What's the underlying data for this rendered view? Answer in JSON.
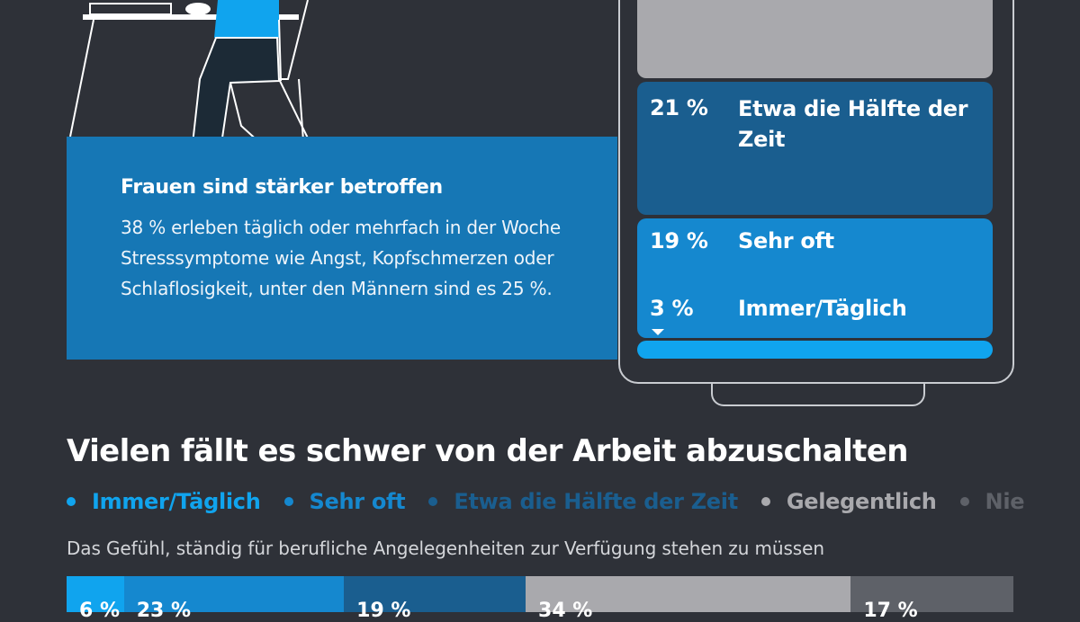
{
  "info": {
    "title": "Frauen sind stärker betroffen",
    "text": "38 % erleben täglich oder mehrfach in der Woche Stresssymptome wie Angst, Kopfschmerzen oder Schlaflosigkeit, unter den Männern sind es 25 %."
  },
  "phone": {
    "segments": [
      {
        "pct": "21 %",
        "label": "Etwa die Hälfte der Zeit"
      },
      {
        "pct": "19 %",
        "label": "Sehr oft"
      },
      {
        "pct": "3 %",
        "label": "Immer/Täglich"
      }
    ]
  },
  "section": {
    "heading": "Vielen fällt es schwer von der Arbeit abzuschalten"
  },
  "legend": [
    {
      "label": "Immer/Täglich",
      "color": "#10a4ee"
    },
    {
      "label": "Sehr oft",
      "color": "#1588cf"
    },
    {
      "label": "Etwa die Hälfte der Zeit",
      "color": "#1a5e8f"
    },
    {
      "label": "Gelegentlich",
      "color": "#a9a9ad"
    },
    {
      "label": "Nie",
      "color": "#5e6168"
    }
  ],
  "bar": {
    "question": "Das Gefühl, ständig für berufliche Angelegenheiten zur Verfügung stehen zu müssen",
    "segments": [
      {
        "category": "Immer/Täglich",
        "value": 6,
        "label": "6 %",
        "color": "#10a4ee"
      },
      {
        "category": "Sehr oft",
        "value": 23,
        "label": "23 %",
        "color": "#1588cf"
      },
      {
        "category": "Etwa die Hälfte der Zeit",
        "value": 19,
        "label": "19 %",
        "color": "#1a5e8f"
      },
      {
        "category": "Gelegentlich",
        "value": 34,
        "label": "34 %",
        "color": "#a9a9ad"
      },
      {
        "category": "Nie",
        "value": 17,
        "label": "17 %",
        "color": "#5e6168"
      }
    ]
  }
}
